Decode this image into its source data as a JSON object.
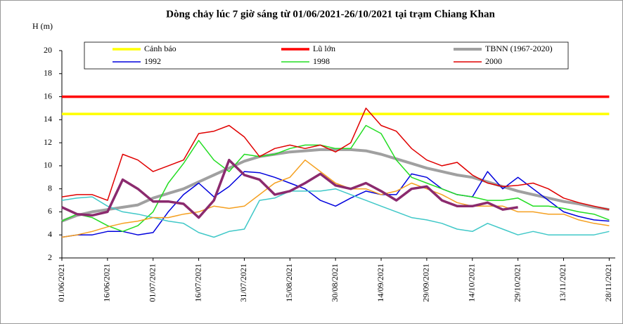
{
  "chart_data": {
    "type": "line",
    "title": "Dòng chảy lúc 7 giờ sáng từ 01/06/2021-26/10/2021 tại trạm Chiang Khan",
    "y_label": "H (m)",
    "x": [
      "01/06/2021",
      "06/06/2021",
      "11/06/2021",
      "16/06/2021",
      "21/06/2021",
      "26/06/2021",
      "01/07/2021",
      "06/07/2021",
      "11/07/2021",
      "16/07/2021",
      "21/07/2021",
      "26/07/2021",
      "31/07/2021",
      "05/08/2021",
      "10/08/2021",
      "15/08/2021",
      "20/08/2021",
      "25/08/2021",
      "30/08/2021",
      "04/09/2021",
      "09/09/2021",
      "14/09/2021",
      "19/09/2021",
      "24/09/2021",
      "29/09/2021",
      "04/10/2021",
      "09/10/2021",
      "14/10/2021",
      "19/10/2021",
      "24/10/2021",
      "29/10/2021",
      "03/11/2021",
      "08/11/2021",
      "13/11/2021",
      "18/11/2021",
      "23/11/2021",
      "28/11/2021"
    ],
    "xlim": [
      "01/06/2021",
      "30/11/2021"
    ],
    "xticks": [
      "01/06/2021",
      "16/06/2021",
      "01/07/2021",
      "16/07/2021",
      "31/07/2021",
      "15/08/2021",
      "30/08/2021",
      "14/09/2021",
      "29/09/2021",
      "14/10/2021",
      "29/10/2021",
      "13/11/2021",
      "28/11/2021"
    ],
    "ylim": [
      2,
      20
    ],
    "yticks": [
      2,
      4,
      6,
      8,
      10,
      12,
      14,
      16,
      18,
      20
    ],
    "series": [
      {
        "name": "Cảnh báo",
        "color": "#ffff00",
        "width": 3.5,
        "values": [
          14.5,
          14.5,
          14.5,
          14.5,
          14.5,
          14.5,
          14.5,
          14.5,
          14.5,
          14.5,
          14.5,
          14.5,
          14.5,
          14.5,
          14.5,
          14.5,
          14.5,
          14.5,
          14.5,
          14.5,
          14.5,
          14.5,
          14.5,
          14.5,
          14.5,
          14.5,
          14.5,
          14.5,
          14.5,
          14.5,
          14.5,
          14.5,
          14.5,
          14.5,
          14.5,
          14.5,
          14.5
        ]
      },
      {
        "name": "Lũ lớn",
        "color": "#ff0000",
        "width": 3.5,
        "values": [
          16,
          16,
          16,
          16,
          16,
          16,
          16,
          16,
          16,
          16,
          16,
          16,
          16,
          16,
          16,
          16,
          16,
          16,
          16,
          16,
          16,
          16,
          16,
          16,
          16,
          16,
          16,
          16,
          16,
          16,
          16,
          16,
          16,
          16,
          16,
          16,
          16
        ]
      },
      {
        "name": "TBNN (1967-2020)",
        "color": "#a0a0a0",
        "width": 4,
        "values": [
          5.2,
          5.7,
          6,
          6.2,
          6.4,
          6.6,
          7.2,
          7.6,
          8,
          8.6,
          9.2,
          9.8,
          10.4,
          10.8,
          11,
          11.2,
          11.3,
          11.4,
          11.4,
          11.4,
          11.3,
          11,
          10.6,
          10.2,
          9.8,
          9.5,
          9.2,
          9,
          8.6,
          8.2,
          7.8,
          7.5,
          7.2,
          6.9,
          6.7,
          6.4,
          6.2
        ]
      },
      {
        "name": "1992",
        "color": "#0000dd",
        "width": 1.5,
        "values": [
          3.8,
          4,
          4,
          4.3,
          4.3,
          4,
          4.2,
          6,
          7.5,
          8.5,
          7.3,
          8.2,
          9.5,
          9.4,
          9,
          8.5,
          8,
          7,
          6.5,
          7.2,
          7.8,
          7.5,
          7.5,
          9.3,
          9,
          8,
          7.5,
          7.3,
          9.5,
          8,
          9,
          8,
          7,
          6,
          5.6,
          5.3,
          5.2
        ]
      },
      {
        "name": "1998",
        "color": "#22dd22",
        "width": 1.5,
        "values": [
          5.2,
          5.8,
          5.5,
          4.8,
          4.3,
          4.8,
          6,
          8.5,
          10.2,
          12.2,
          10.5,
          9.5,
          11,
          10.8,
          11,
          11.5,
          11.8,
          11.8,
          11.5,
          11.5,
          13.5,
          12.8,
          10.5,
          9,
          8.5,
          8,
          7.5,
          7.3,
          7,
          7,
          7.2,
          6.5,
          6.5,
          6.3,
          6,
          5.8,
          5.3
        ]
      },
      {
        "name": "2000",
        "color": "#e00000",
        "width": 1.5,
        "values": [
          7.3,
          7.5,
          7.5,
          7,
          11,
          10.5,
          9.5,
          10,
          10.5,
          12.8,
          13,
          13.5,
          12.5,
          10.8,
          11.5,
          11.8,
          11.5,
          11.8,
          11.2,
          12,
          15,
          13.5,
          13,
          11.5,
          10.5,
          10,
          10.3,
          9.2,
          8.5,
          8.2,
          8.3,
          8.5,
          8,
          7.2,
          6.8,
          6.5,
          6.2
        ]
      },
      {
        "color": "#40c8c8",
        "width": 1.5,
        "values": [
          7,
          7.2,
          7.3,
          6.5,
          6,
          5.8,
          5.5,
          5.2,
          5,
          4.2,
          3.8,
          4.3,
          4.5,
          7,
          7.2,
          7.8,
          7.8,
          7.8,
          8,
          7.5,
          7,
          6.5,
          6,
          5.5,
          5.3,
          5,
          4.5,
          4.3,
          5,
          4.5,
          4,
          4.3,
          4,
          4,
          4,
          4,
          4.3
        ]
      },
      {
        "color": "#f5a020",
        "width": 1.5,
        "values": [
          3.8,
          4,
          4.3,
          4.7,
          5,
          5.2,
          5.5,
          5.5,
          5.8,
          6,
          6.5,
          6.3,
          6.5,
          7.5,
          8.5,
          9,
          10.5,
          9.5,
          8.5,
          8,
          8,
          7.5,
          7.8,
          8.5,
          8,
          7.5,
          6.8,
          6.5,
          6.5,
          6.5,
          6,
          6,
          5.8,
          5.8,
          5.3,
          5,
          4.8
        ]
      },
      {
        "color": "#8b2a6e",
        "width": 3.5,
        "values": [
          6.4,
          5.8,
          5.7,
          6,
          8.8,
          8,
          6.9,
          6.9,
          6.7,
          5.5,
          7,
          10.5,
          9.2,
          8.8,
          7.5,
          7.8,
          8.5,
          9.3,
          8.3,
          8,
          8.5,
          7.8,
          7,
          8,
          8.2,
          7,
          6.5,
          6.5,
          6.8,
          6.2,
          6.4,
          null,
          null,
          null,
          null,
          null,
          null
        ]
      }
    ]
  }
}
